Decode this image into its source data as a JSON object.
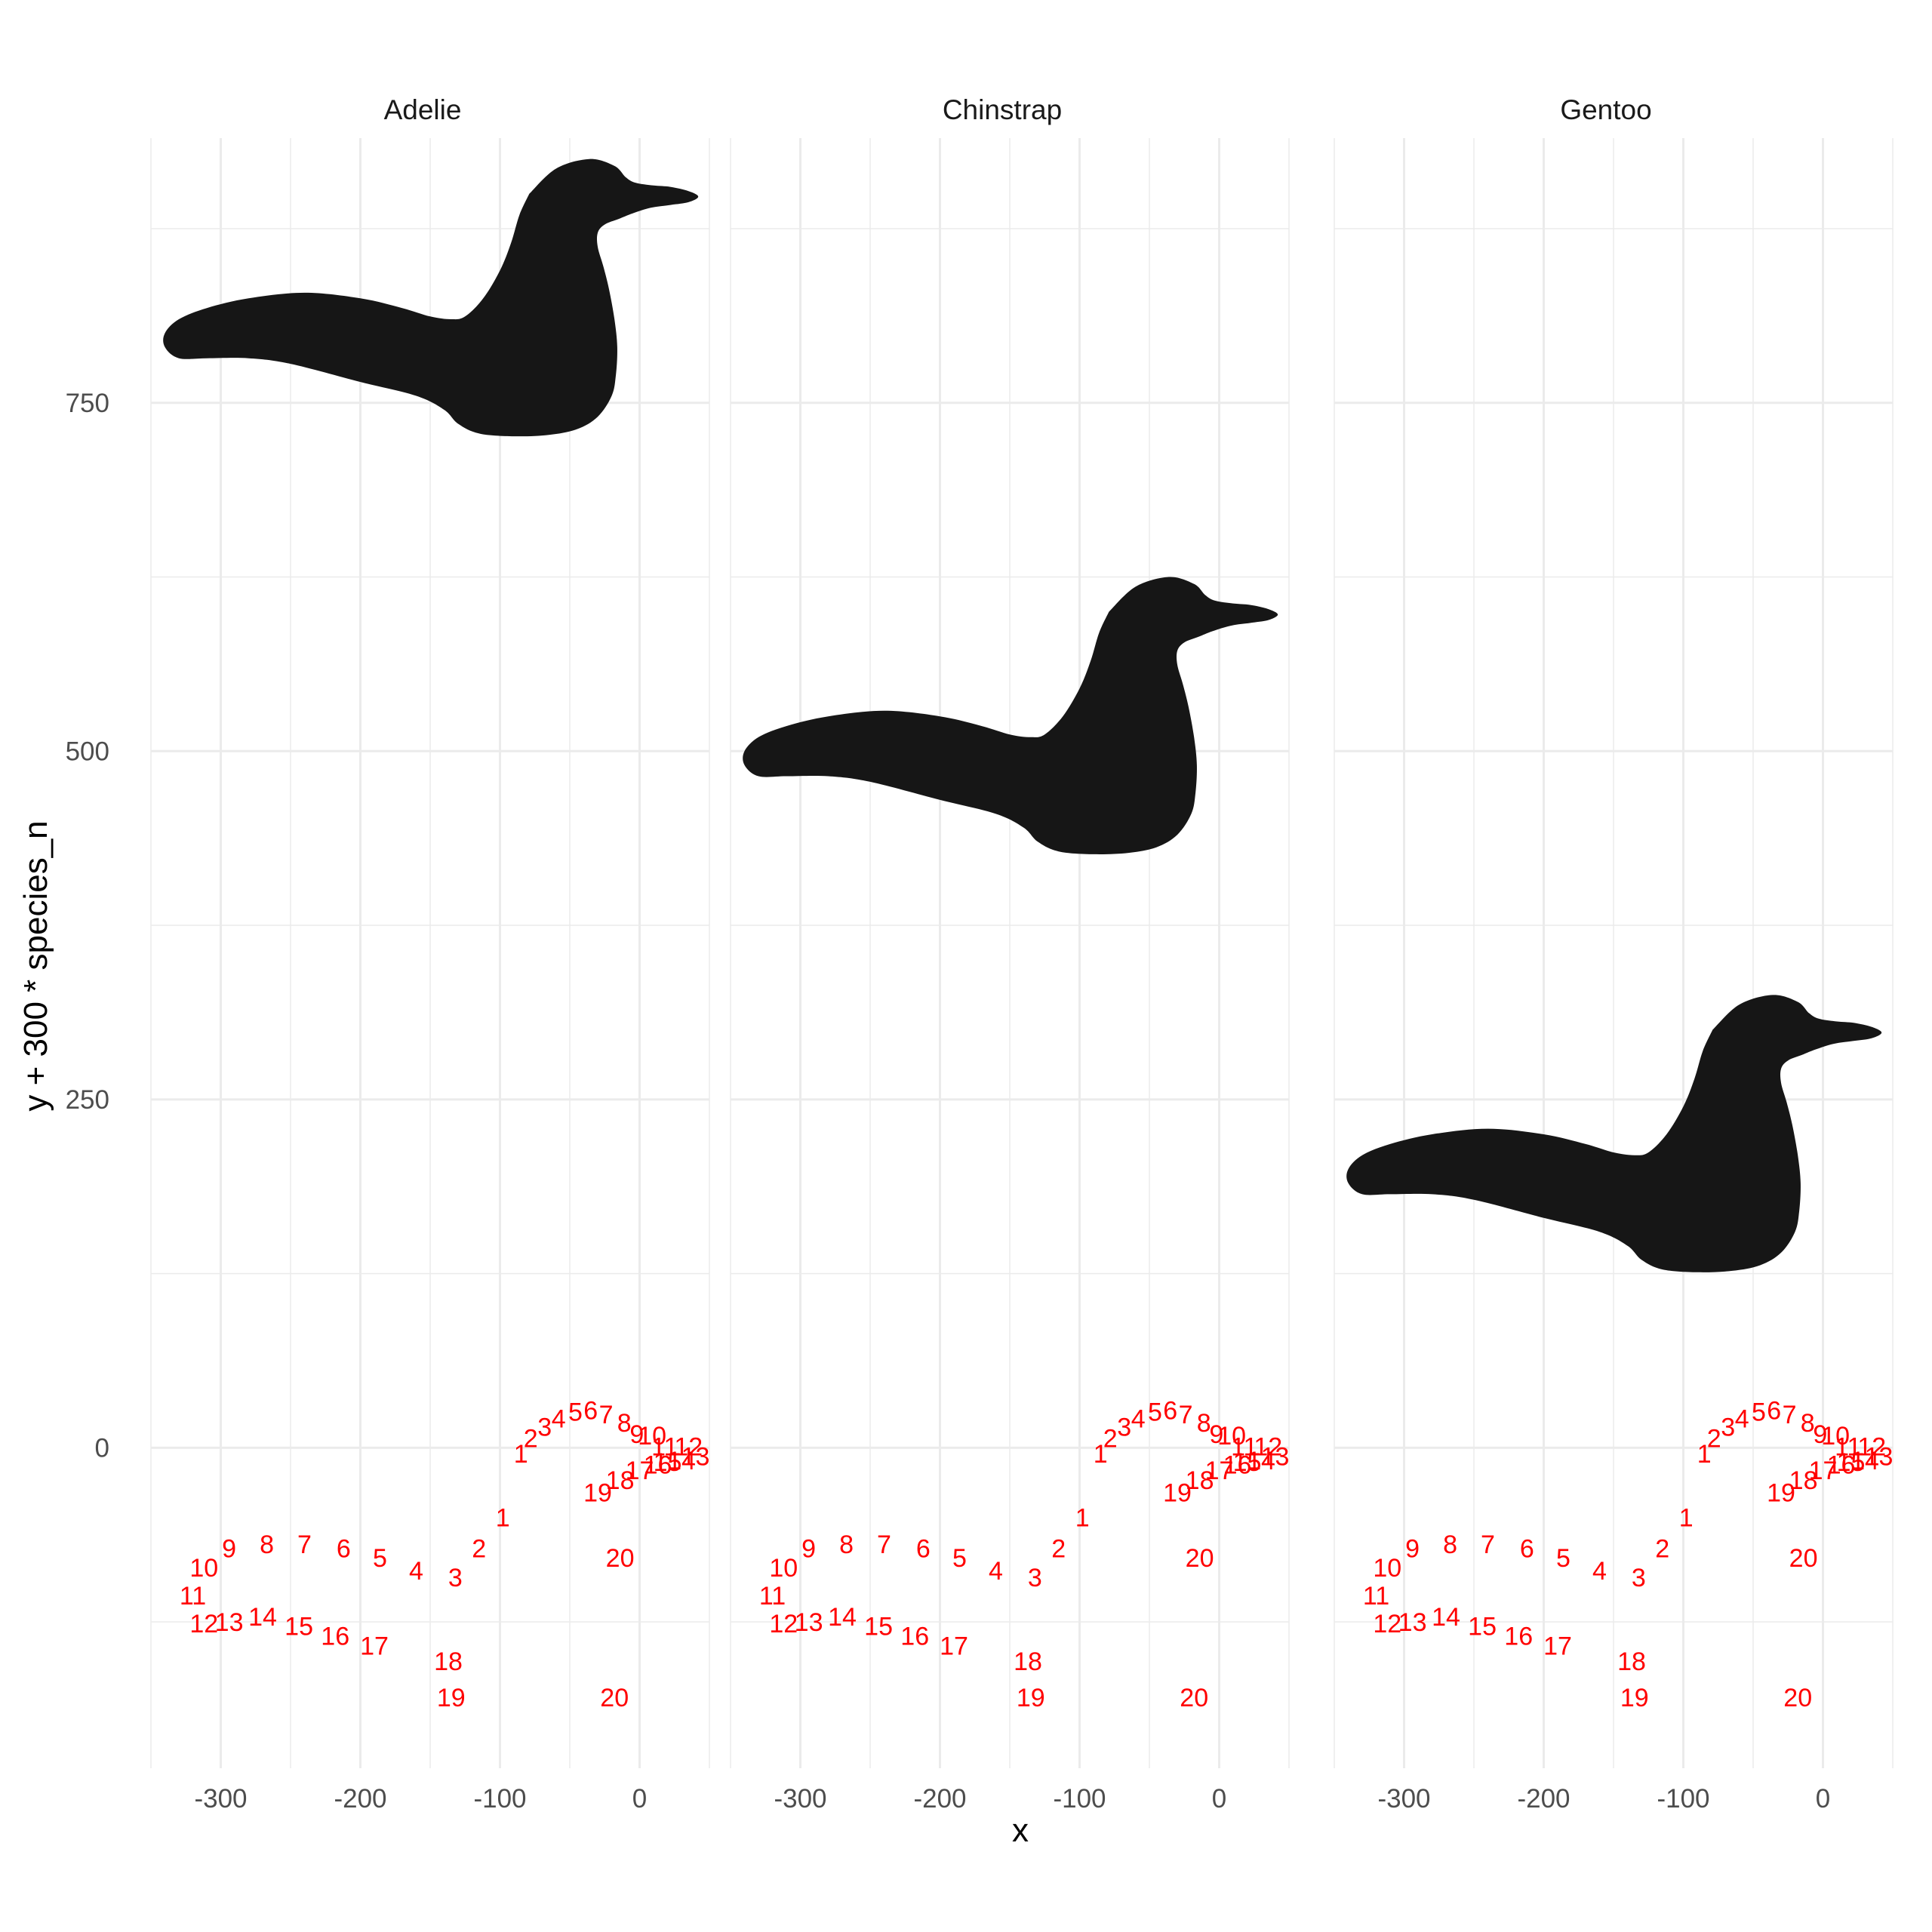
{
  "chart_data": {
    "type": "faceted shape plot with labelled outline points",
    "xlabel": "x",
    "ylabel": "y + 300 * species_n",
    "xlim": [
      -350,
      50
    ],
    "ylim": [
      -230,
      940
    ],
    "x_ticks": [
      -300,
      -200,
      -100,
      0
    ],
    "x_tick_labels": [
      "-300",
      "-200",
      "-100",
      "0"
    ],
    "y_ticks": [
      0,
      250,
      500,
      750
    ],
    "y_tick_labels": [
      "0",
      "250",
      "500",
      "750"
    ],
    "grid": true,
    "colors": {
      "shape": "#161616",
      "labels": "#ff0000",
      "grid": "#ebebeb"
    },
    "facets": [
      {
        "name": "Adelie",
        "species_n": 2,
        "shape_offset": 600
      },
      {
        "name": "Chinstrap",
        "species_n": 1,
        "shape_offset": 300
      },
      {
        "name": "Gentoo",
        "species_n": 0,
        "shape_offset": 0
      }
    ],
    "shape_outline": [
      [
        -79,
        300
      ],
      [
        -60,
        318
      ],
      [
        -36,
        325
      ],
      [
        -18,
        320
      ],
      [
        -10,
        312
      ],
      [
        -3,
        308
      ],
      [
        10,
        306
      ],
      [
        22,
        305
      ],
      [
        35,
        302
      ],
      [
        42,
        298
      ],
      [
        35,
        294
      ],
      [
        22,
        292
      ],
      [
        8,
        290
      ],
      [
        -5,
        286
      ],
      [
        -15,
        282
      ],
      [
        -25,
        278
      ],
      [
        -30,
        272
      ],
      [
        -30,
        262
      ],
      [
        -26,
        248
      ],
      [
        -22,
        232
      ],
      [
        -18,
        210
      ],
      [
        -16,
        190
      ],
      [
        -17,
        170
      ],
      [
        -20,
        155
      ],
      [
        -30,
        140
      ],
      [
        -45,
        131
      ],
      [
        -65,
        127
      ],
      [
        -90,
        126
      ],
      [
        -115,
        128
      ],
      [
        -130,
        135
      ],
      [
        -140,
        145
      ],
      [
        -160,
        155
      ],
      [
        -200,
        165
      ],
      [
        -250,
        178
      ],
      [
        -280,
        182
      ],
      [
        -310,
        182
      ],
      [
        -330,
        182
      ],
      [
        -340,
        190
      ],
      [
        -340,
        200
      ],
      [
        -330,
        210
      ],
      [
        -310,
        218
      ],
      [
        -280,
        225
      ],
      [
        -240,
        229
      ],
      [
        -200,
        225
      ],
      [
        -170,
        218
      ],
      [
        -150,
        212
      ],
      [
        -135,
        210
      ],
      [
        -125,
        212
      ],
      [
        -112,
        225
      ],
      [
        -100,
        245
      ],
      [
        -92,
        265
      ],
      [
        -86,
        285
      ],
      [
        -79,
        300
      ]
    ],
    "lower_labels": [
      {
        "label": "1",
        "x": -98,
        "y": -50
      },
      {
        "label": "2",
        "x": -115,
        "y": -72
      },
      {
        "label": "3",
        "x": -132,
        "y": -93
      },
      {
        "label": "4",
        "x": -160,
        "y": -88
      },
      {
        "label": "5",
        "x": -186,
        "y": -79
      },
      {
        "label": "6",
        "x": -212,
        "y": -72
      },
      {
        "label": "7",
        "x": -240,
        "y": -69
      },
      {
        "label": "8",
        "x": -267,
        "y": -69
      },
      {
        "label": "9",
        "x": -294,
        "y": -72
      },
      {
        "label": "10",
        "x": -312,
        "y": -86
      },
      {
        "label": "11",
        "x": -320,
        "y": -106
      },
      {
        "label": "12",
        "x": -312,
        "y": -126
      },
      {
        "label": "13",
        "x": -294,
        "y": -125
      },
      {
        "label": "14",
        "x": -270,
        "y": -121
      },
      {
        "label": "15",
        "x": -244,
        "y": -128
      },
      {
        "label": "16",
        "x": -218,
        "y": -135
      },
      {
        "label": "17",
        "x": -190,
        "y": -142
      },
      {
        "label": "18",
        "x": -137,
        "y": -153
      },
      {
        "label": "19",
        "x": -135,
        "y": -179
      },
      {
        "label": "20",
        "x": -14,
        "y": -79
      },
      {
        "label": "20",
        "x": -18,
        "y": -179
      }
    ],
    "upper_labels": [
      {
        "label": "1",
        "x": -85,
        "y": -4
      },
      {
        "label": "2",
        "x": -78,
        "y": 7
      },
      {
        "label": "3",
        "x": -68,
        "y": 15
      },
      {
        "label": "4",
        "x": -58,
        "y": 21
      },
      {
        "label": "5",
        "x": -46,
        "y": 26
      },
      {
        "label": "6",
        "x": -35,
        "y": 27
      },
      {
        "label": "7",
        "x": -24,
        "y": 24
      },
      {
        "label": "8",
        "x": -11,
        "y": 18
      },
      {
        "label": "9",
        "x": -2,
        "y": 10
      },
      {
        "label": "10",
        "x": 9,
        "y": 9
      },
      {
        "label": "11",
        "x": 18,
        "y": 1
      },
      {
        "label": "12",
        "x": 35,
        "y": 1
      },
      {
        "label": "13",
        "x": 40,
        "y": -6
      },
      {
        "label": "14",
        "x": 30,
        "y": -9
      },
      {
        "label": "15",
        "x": 20,
        "y": -10
      },
      {
        "label": "16",
        "x": 13,
        "y": -12
      },
      {
        "label": "17",
        "x": 0,
        "y": -16
      },
      {
        "label": "18",
        "x": -14,
        "y": -23
      },
      {
        "label": "19",
        "x": -30,
        "y": -32
      }
    ]
  }
}
